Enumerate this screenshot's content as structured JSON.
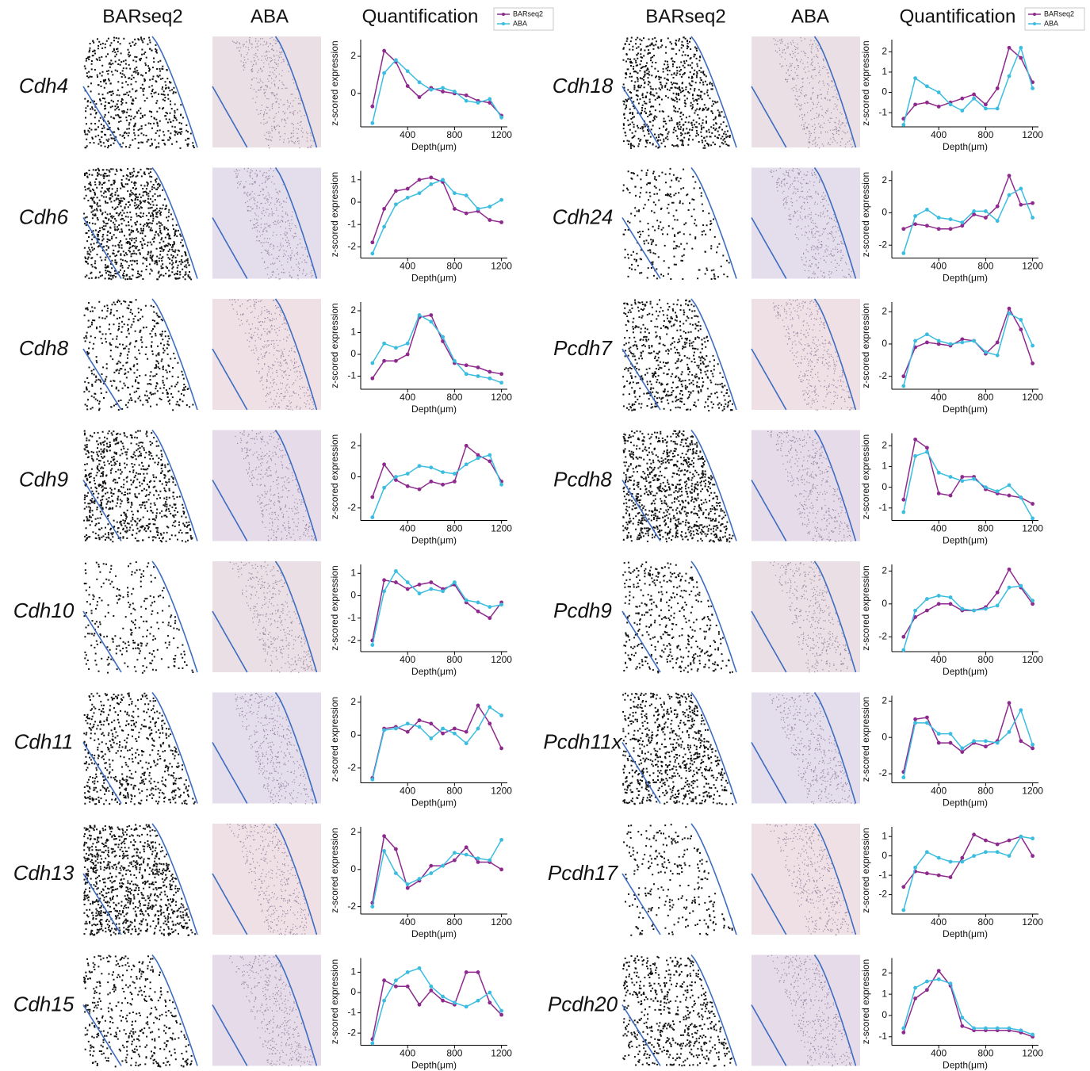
{
  "column_headers": [
    "BARseq2",
    "ABA",
    "Quantification",
    "BARseq2",
    "ABA",
    "Quantification"
  ],
  "chart_data": [
    {
      "type": "line",
      "title": "Cdh4",
      "xlabel": "Depth(μm)",
      "ylabel": "z-scored expression",
      "x": [
        100,
        200,
        300,
        400,
        500,
        600,
        700,
        800,
        900,
        1000,
        1100,
        1200
      ],
      "xlim": [
        0,
        1250
      ],
      "xticks": [
        400,
        800,
        1200
      ],
      "ylim": [
        -1.8,
        2.9
      ],
      "yticks": [
        0,
        2
      ],
      "legend": "top right",
      "series": [
        {
          "name": "BARseq2",
          "color": "#8e2a8e",
          "values": [
            -0.7,
            2.3,
            1.7,
            0.4,
            -0.2,
            0.3,
            0.1,
            0,
            -0.1,
            -0.4,
            -0.5,
            -1.2
          ]
        },
        {
          "name": "ABA",
          "color": "#3bbde0",
          "values": [
            -1.6,
            1.1,
            1.8,
            1.2,
            0.6,
            0.2,
            0.3,
            0.1,
            -0.4,
            -0.5,
            -0.3,
            -1.3
          ]
        }
      ]
    },
    {
      "type": "line",
      "title": "Cdh6",
      "xlabel": "Depth(μm)",
      "ylabel": "z-scored expression",
      "x": [
        100,
        200,
        300,
        400,
        500,
        600,
        700,
        800,
        900,
        1000,
        1100,
        1200
      ],
      "xlim": [
        0,
        1250
      ],
      "xticks": [
        400,
        800,
        1200
      ],
      "ylim": [
        -2.5,
        1.4
      ],
      "yticks": [
        -2,
        -1,
        0,
        1
      ],
      "series": [
        {
          "name": "BARseq2",
          "color": "#8e2a8e",
          "values": [
            -1.8,
            -0.3,
            0.5,
            0.6,
            1.0,
            1.1,
            0.9,
            -0.3,
            -0.5,
            -0.4,
            -0.8,
            -0.9
          ]
        },
        {
          "name": "ABA",
          "color": "#3bbde0",
          "values": [
            -2.3,
            -1.1,
            -0.1,
            0.2,
            0.4,
            0.8,
            1.0,
            0.4,
            0.3,
            -0.3,
            -0.2,
            0.1
          ]
        }
      ]
    },
    {
      "type": "line",
      "title": "Cdh8",
      "xlabel": "Depth(μm)",
      "ylabel": "z-scored expression",
      "x": [
        100,
        200,
        300,
        400,
        500,
        600,
        700,
        800,
        900,
        1000,
        1100,
        1200
      ],
      "xlim": [
        0,
        1250
      ],
      "xticks": [
        400,
        800,
        1200
      ],
      "ylim": [
        -1.6,
        2.4
      ],
      "yticks": [
        -1,
        0,
        1,
        2
      ],
      "series": [
        {
          "name": "BARseq2",
          "color": "#8e2a8e",
          "values": [
            -1.1,
            -0.3,
            -0.3,
            0,
            1.7,
            1.8,
            0.6,
            -0.4,
            -0.5,
            -0.6,
            -0.8,
            -0.9
          ]
        },
        {
          "name": "ABA",
          "color": "#3bbde0",
          "values": [
            -0.4,
            0.5,
            0.3,
            0.5,
            1.8,
            1.5,
            0.8,
            -0.3,
            -0.9,
            -1.0,
            -1.1,
            -1.3
          ]
        }
      ]
    },
    {
      "type": "line",
      "title": "Cdh9",
      "xlabel": "Depth(μm)",
      "ylabel": "z-scored expression",
      "x": [
        100,
        200,
        300,
        400,
        500,
        600,
        700,
        800,
        900,
        1000,
        1100,
        1200
      ],
      "xlim": [
        0,
        1250
      ],
      "xticks": [
        400,
        800,
        1200
      ],
      "ylim": [
        -2.8,
        2.8
      ],
      "yticks": [
        -2,
        0,
        2
      ],
      "series": [
        {
          "name": "BARseq2",
          "color": "#8e2a8e",
          "values": [
            -1.3,
            0.8,
            -0.2,
            -0.6,
            -0.8,
            -0.3,
            -0.5,
            -0.3,
            2.0,
            1.4,
            1.0,
            -0.3
          ]
        },
        {
          "name": "ABA",
          "color": "#3bbde0",
          "values": [
            -2.6,
            -0.7,
            0,
            0.2,
            0.7,
            0.6,
            0.3,
            0.2,
            0.8,
            1.2,
            1.4,
            -0.5
          ]
        }
      ]
    },
    {
      "type": "line",
      "title": "Cdh10",
      "xlabel": "Depth(μm)",
      "ylabel": "z-scored expression",
      "x": [
        100,
        200,
        300,
        400,
        500,
        600,
        700,
        800,
        900,
        1000,
        1100,
        1200
      ],
      "xlim": [
        0,
        1250
      ],
      "xticks": [
        400,
        800,
        1200
      ],
      "ylim": [
        -2.5,
        1.4
      ],
      "yticks": [
        -2,
        -1,
        0,
        1
      ],
      "series": [
        {
          "name": "BARseq2",
          "color": "#8e2a8e",
          "values": [
            -2.0,
            0.7,
            0.6,
            0.3,
            0.5,
            0.6,
            0.3,
            0.5,
            -0.3,
            -0.7,
            -1.0,
            -0.3
          ]
        },
        {
          "name": "ABA",
          "color": "#3bbde0",
          "values": [
            -2.2,
            0.2,
            1.1,
            0.6,
            0.1,
            0.3,
            0.2,
            0.6,
            -0.2,
            -0.3,
            -0.5,
            -0.4
          ]
        }
      ]
    },
    {
      "type": "line",
      "title": "Cdh11",
      "xlabel": "Depth(μm)",
      "ylabel": "z-scored expression",
      "x": [
        100,
        200,
        300,
        400,
        500,
        600,
        700,
        800,
        900,
        1000,
        1100,
        1200
      ],
      "xlim": [
        0,
        1250
      ],
      "xticks": [
        400,
        800,
        1200
      ],
      "ylim": [
        -2.9,
        2.4
      ],
      "yticks": [
        -2,
        0,
        2
      ],
      "series": [
        {
          "name": "BARseq2",
          "color": "#8e2a8e",
          "values": [
            -2.6,
            0.4,
            0.5,
            0.2,
            0.9,
            0.7,
            0.1,
            0.4,
            0.2,
            1.8,
            0.7,
            -0.8
          ]
        },
        {
          "name": "ABA",
          "color": "#3bbde0",
          "values": [
            -2.7,
            0.3,
            0.4,
            0.7,
            0.5,
            -0.2,
            0.4,
            0.1,
            -0.5,
            0.4,
            1.7,
            1.2
          ]
        }
      ]
    },
    {
      "type": "line",
      "title": "Cdh13",
      "xlabel": "Depth(μm)",
      "ylabel": "z-scored expression",
      "x": [
        100,
        200,
        300,
        400,
        500,
        600,
        700,
        800,
        900,
        1000,
        1100,
        1200
      ],
      "xlim": [
        0,
        1250
      ],
      "xticks": [
        400,
        800,
        1200
      ],
      "ylim": [
        -2.4,
        2.3
      ],
      "yticks": [
        -2,
        0,
        2
      ],
      "series": [
        {
          "name": "BARseq2",
          "color": "#8e2a8e",
          "values": [
            -1.8,
            1.8,
            1.1,
            -1.0,
            -0.6,
            0.2,
            0.2,
            0.5,
            1.2,
            0.4,
            0.4,
            0
          ]
        },
        {
          "name": "ABA",
          "color": "#3bbde0",
          "values": [
            -2.0,
            1.0,
            -0.2,
            -0.8,
            -0.5,
            -0.2,
            0.2,
            0.9,
            0.8,
            0.6,
            0.5,
            1.6
          ]
        }
      ]
    },
    {
      "type": "line",
      "title": "Cdh15",
      "xlabel": "Depth(μm)",
      "ylabel": "z-scored expression",
      "x": [
        100,
        200,
        300,
        400,
        500,
        600,
        700,
        800,
        900,
        1000,
        1100,
        1200
      ],
      "xlim": [
        0,
        1250
      ],
      "xticks": [
        400,
        800,
        1200
      ],
      "ylim": [
        -2.6,
        1.7
      ],
      "yticks": [
        -2,
        -1,
        0,
        1
      ],
      "series": [
        {
          "name": "BARseq2",
          "color": "#8e2a8e",
          "values": [
            -2.3,
            0.6,
            0.3,
            0.3,
            -0.6,
            0.1,
            -0.4,
            -0.6,
            1.0,
            1.0,
            -0.5,
            -1.1
          ]
        },
        {
          "name": "ABA",
          "color": "#3bbde0",
          "values": [
            -2.5,
            -0.4,
            0.6,
            1.0,
            1.2,
            0.3,
            -0.2,
            -0.5,
            -0.7,
            -0.4,
            0,
            -0.9
          ]
        }
      ]
    },
    {
      "type": "line",
      "title": "Cdh18",
      "xlabel": "Depth(μm)",
      "ylabel": "z-scored expression",
      "x": [
        100,
        200,
        300,
        400,
        500,
        600,
        700,
        800,
        900,
        1000,
        1100,
        1200
      ],
      "xlim": [
        0,
        1250
      ],
      "xticks": [
        400,
        800,
        1200
      ],
      "ylim": [
        -1.7,
        2.6
      ],
      "yticks": [
        -1,
        0,
        1,
        2
      ],
      "legend": "top right",
      "series": [
        {
          "name": "BARseq2",
          "color": "#8e2a8e",
          "values": [
            -1.3,
            -0.6,
            -0.5,
            -0.7,
            -0.5,
            -0.3,
            -0.1,
            -0.6,
            0.2,
            2.2,
            1.7,
            0.5
          ]
        },
        {
          "name": "ABA",
          "color": "#3bbde0",
          "values": [
            -1.6,
            0.7,
            0.3,
            0,
            -0.6,
            -0.9,
            -0.3,
            -0.8,
            -0.8,
            0.8,
            2.2,
            0.2
          ]
        }
      ]
    },
    {
      "type": "line",
      "title": "Cdh24",
      "xlabel": "Depth(μm)",
      "ylabel": "z-scored expression",
      "x": [
        100,
        200,
        300,
        400,
        500,
        600,
        700,
        800,
        900,
        1000,
        1100,
        1200
      ],
      "xlim": [
        0,
        1250
      ],
      "xticks": [
        400,
        800,
        1200
      ],
      "ylim": [
        -2.8,
        2.6
      ],
      "yticks": [
        -2,
        0,
        2
      ],
      "series": [
        {
          "name": "BARseq2",
          "color": "#8e2a8e",
          "values": [
            -1.0,
            -0.7,
            -0.8,
            -1.0,
            -1.0,
            -0.8,
            -0.1,
            -0.3,
            0.4,
            2.3,
            0.5,
            0.6
          ]
        },
        {
          "name": "ABA",
          "color": "#3bbde0",
          "values": [
            -2.5,
            -0.2,
            0.2,
            -0.3,
            -0.4,
            -0.6,
            0.1,
            0.1,
            -0.5,
            1.1,
            1.5,
            -0.3
          ]
        }
      ]
    },
    {
      "type": "line",
      "title": "Pcdh7",
      "xlabel": "Depth(μm)",
      "ylabel": "z-scored expression",
      "x": [
        100,
        200,
        300,
        400,
        500,
        600,
        700,
        800,
        900,
        1000,
        1100,
        1200
      ],
      "xlim": [
        0,
        1250
      ],
      "xticks": [
        400,
        800,
        1200
      ],
      "ylim": [
        -2.8,
        2.6
      ],
      "yticks": [
        -2,
        0,
        2
      ],
      "series": [
        {
          "name": "BARseq2",
          "color": "#8e2a8e",
          "values": [
            -2.0,
            -0.2,
            0.1,
            0,
            -0.1,
            0.3,
            0.2,
            -0.6,
            0.1,
            2.2,
            0.9,
            -1.2
          ]
        },
        {
          "name": "ABA",
          "color": "#3bbde0",
          "values": [
            -2.6,
            0.2,
            0.6,
            0.2,
            0,
            0.1,
            0.2,
            -0.5,
            -0.7,
            1.9,
            1.5,
            -0.1
          ]
        }
      ]
    },
    {
      "type": "line",
      "title": "Pcdh8",
      "xlabel": "Depth(μm)",
      "ylabel": "z-scored expression",
      "x": [
        100,
        200,
        300,
        400,
        500,
        600,
        700,
        800,
        900,
        1000,
        1100,
        1200
      ],
      "xlim": [
        0,
        1250
      ],
      "xticks": [
        400,
        800,
        1200
      ],
      "ylim": [
        -1.6,
        2.6
      ],
      "yticks": [
        -1,
        0,
        1,
        2
      ],
      "series": [
        {
          "name": "BARseq2",
          "color": "#8e2a8e",
          "values": [
            -0.6,
            2.3,
            1.9,
            -0.3,
            -0.4,
            0.5,
            0.5,
            -0.1,
            -0.3,
            -0.4,
            -0.5,
            -0.8
          ]
        },
        {
          "name": "ABA",
          "color": "#3bbde0",
          "values": [
            -1.2,
            1.5,
            1.7,
            0.7,
            0.5,
            0.3,
            0.4,
            0,
            -0.2,
            0.1,
            -0.5,
            -1.5
          ]
        }
      ]
    },
    {
      "type": "line",
      "title": "Pcdh9",
      "xlabel": "Depth(μm)",
      "ylabel": "z-scored expression",
      "x": [
        100,
        200,
        300,
        400,
        500,
        600,
        700,
        800,
        900,
        1000,
        1100,
        1200
      ],
      "xlim": [
        0,
        1250
      ],
      "xticks": [
        400,
        800,
        1200
      ],
      "ylim": [
        -2.9,
        2.4
      ],
      "yticks": [
        -2,
        0,
        2
      ],
      "series": [
        {
          "name": "BARseq2",
          "color": "#8e2a8e",
          "values": [
            -2.0,
            -0.8,
            -0.4,
            0,
            0,
            -0.4,
            -0.4,
            -0.2,
            0.7,
            2.1,
            1.0,
            0
          ]
        },
        {
          "name": "ABA",
          "color": "#3bbde0",
          "values": [
            -2.8,
            -0.4,
            0.3,
            0.5,
            0.4,
            -0.3,
            -0.4,
            -0.3,
            -0.1,
            1.0,
            1.1,
            0.2
          ]
        }
      ]
    },
    {
      "type": "line",
      "title": "Pcdh11x",
      "xlabel": "Depth(μm)",
      "ylabel": "z-scored expression",
      "x": [
        100,
        200,
        300,
        400,
        500,
        600,
        700,
        800,
        900,
        1000,
        1100,
        1200
      ],
      "xlim": [
        0,
        1250
      ],
      "xticks": [
        400,
        800,
        1200
      ],
      "ylim": [
        -2.5,
        2.3
      ],
      "yticks": [
        -2,
        0,
        2
      ],
      "series": [
        {
          "name": "BARseq2",
          "color": "#8e2a8e",
          "values": [
            -1.9,
            1.0,
            1.1,
            -0.3,
            -0.3,
            -0.8,
            -0.3,
            -0.5,
            -0.2,
            1.9,
            -0.2,
            -0.6
          ]
        },
        {
          "name": "ABA",
          "color": "#3bbde0",
          "values": [
            -2.2,
            0.8,
            0.8,
            0.2,
            0.2,
            -0.6,
            -0.2,
            -0.2,
            -0.3,
            0.3,
            1.5,
            -0.4
          ]
        }
      ]
    },
    {
      "type": "line",
      "title": "Pcdh17",
      "xlabel": "Depth(μm)",
      "ylabel": "z-scored expression",
      "x": [
        100,
        200,
        300,
        400,
        500,
        600,
        700,
        800,
        900,
        1000,
        1100,
        1200
      ],
      "xlim": [
        0,
        1250
      ],
      "xticks": [
        400,
        800,
        1200
      ],
      "ylim": [
        -3.0,
        1.5
      ],
      "yticks": [
        -2,
        -1,
        0,
        1
      ],
      "series": [
        {
          "name": "BARseq2",
          "color": "#8e2a8e",
          "values": [
            -1.6,
            -0.8,
            -0.9,
            -1.0,
            -1.1,
            -0.1,
            1.1,
            0.8,
            0.6,
            0.8,
            1.0,
            0
          ]
        },
        {
          "name": "ABA",
          "color": "#3bbde0",
          "values": [
            -2.8,
            -0.6,
            0.2,
            -0.1,
            -0.3,
            -0.3,
            0,
            0.2,
            0.2,
            0,
            1.0,
            0.9
          ]
        }
      ]
    },
    {
      "type": "line",
      "title": "Pcdh20",
      "xlabel": "Depth(μm)",
      "ylabel": "z-scored expression",
      "x": [
        100,
        200,
        300,
        400,
        500,
        600,
        700,
        800,
        900,
        1000,
        1100,
        1200
      ],
      "xlim": [
        0,
        1250
      ],
      "xticks": [
        400,
        800,
        1200
      ],
      "ylim": [
        -1.4,
        2.7
      ],
      "yticks": [
        -1,
        0,
        1,
        2
      ],
      "series": [
        {
          "name": "BARseq2",
          "color": "#8e2a8e",
          "values": [
            -0.8,
            0.8,
            1.2,
            2.1,
            1.4,
            -0.5,
            -0.7,
            -0.7,
            -0.7,
            -0.7,
            -0.8,
            -1.0
          ]
        },
        {
          "name": "ABA",
          "color": "#3bbde0",
          "values": [
            -0.6,
            1.3,
            1.6,
            1.7,
            1.5,
            -0.1,
            -0.6,
            -0.6,
            -0.6,
            -0.6,
            -0.7,
            -0.9
          ]
        }
      ]
    }
  ]
}
